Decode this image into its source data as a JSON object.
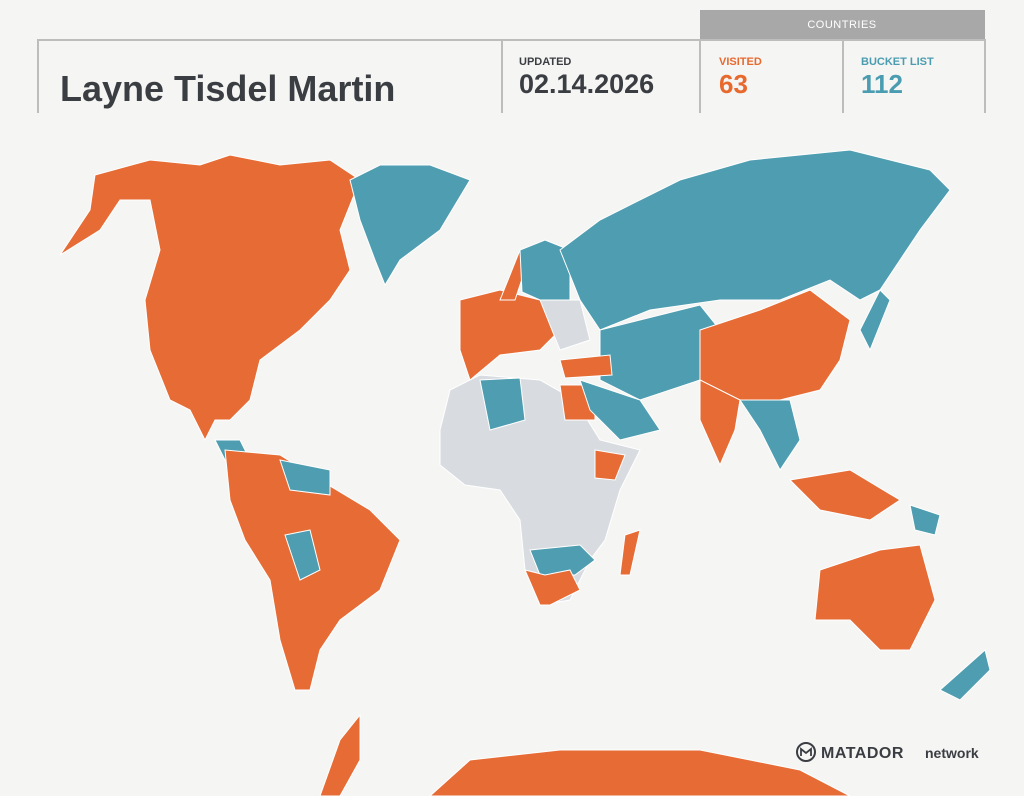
{
  "header": {
    "name": "Layne Tisdel Martin",
    "updated_label": "UPDATED",
    "updated_date": "02.14.2026"
  },
  "countries": {
    "title": "COUNTRIES",
    "visited_label": "VISITED",
    "visited": 63,
    "bucket_label": "BUCKET LIST",
    "bucket": 112
  },
  "logo": {
    "brand": "MATADOR",
    "suffix": "network"
  }
}
